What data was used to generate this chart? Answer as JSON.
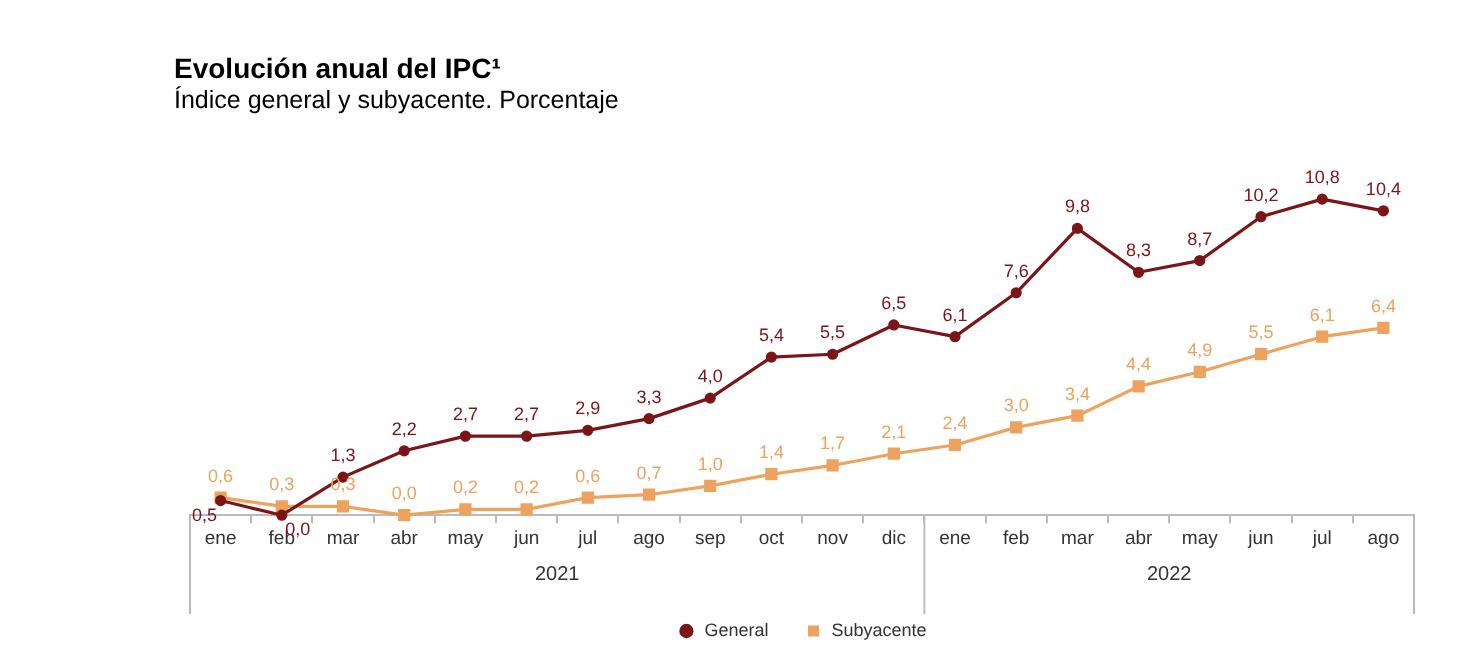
{
  "chart_data": {
    "type": "line",
    "title": "Evolución anual del IPC¹",
    "subtitle": "Índice general y subyacente. Porcentaje",
    "categories": [
      "ene",
      "feb",
      "mar",
      "abr",
      "may",
      "jun",
      "jul",
      "ago",
      "sep",
      "oct",
      "nov",
      "dic",
      "ene",
      "feb",
      "mar",
      "abr",
      "may",
      "jun",
      "jul",
      "ago"
    ],
    "annotations": [
      "2021",
      "2022"
    ],
    "legend": "bottom",
    "grid": false,
    "series": [
      {
        "name": "General",
        "color": "#7b1518",
        "marker": "circle",
        "values": [
          0.5,
          0.0,
          1.3,
          2.2,
          2.7,
          2.7,
          2.9,
          3.3,
          4.0,
          5.4,
          5.5,
          6.5,
          6.1,
          7.6,
          9.8,
          8.3,
          8.7,
          10.2,
          10.8,
          10.4
        ],
        "value_labels": [
          "0,5",
          "0,0",
          "1,3",
          "2,2",
          "2,7",
          "2,7",
          "2,9",
          "3,3",
          "4,0",
          "5,4",
          "5,5",
          "6,5",
          "6,1",
          "7,6",
          "9,8",
          "8,3",
          "8,7",
          "10,2",
          "10,8",
          "10,4"
        ]
      },
      {
        "name": "Subyacente",
        "color": "#eda25e",
        "marker": "square",
        "values": [
          0.6,
          0.3,
          0.3,
          0.0,
          0.2,
          0.2,
          0.6,
          0.7,
          1.0,
          1.4,
          1.7,
          2.1,
          2.4,
          3.0,
          3.4,
          4.4,
          4.9,
          5.5,
          6.1,
          6.4
        ],
        "value_labels": [
          "0,6",
          "0,3",
          "0,3",
          "0,0",
          "0,2",
          "0,2",
          "0,6",
          "0,7",
          "1,0",
          "1,4",
          "1,7",
          "2,1",
          "2,4",
          "3,0",
          "3,4",
          "4,4",
          "4,9",
          "5,5",
          "6,1",
          "6,4"
        ]
      }
    ]
  }
}
